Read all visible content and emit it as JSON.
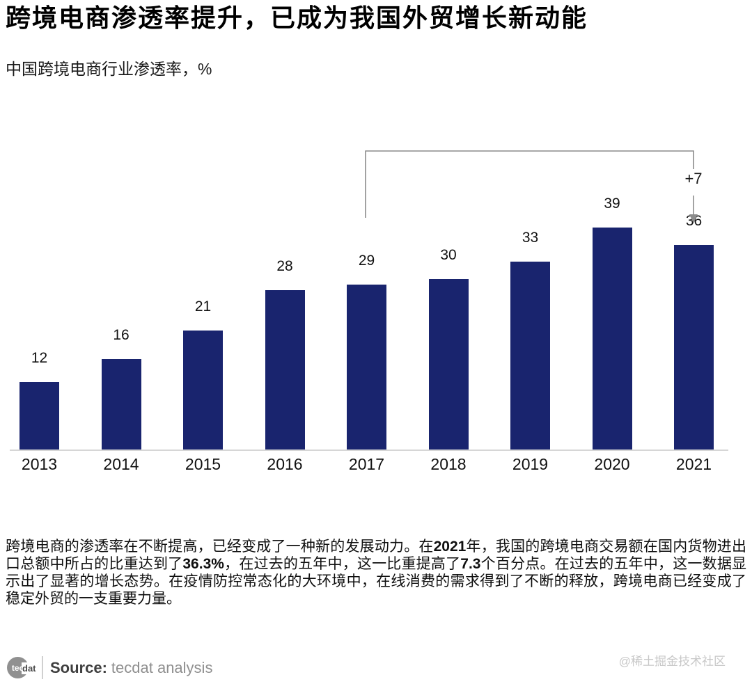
{
  "header": {
    "title": "跨境电商渗透率提升，已成为我国外贸增长新动能",
    "subtitle": "中国跨境电商行业渗透率，%"
  },
  "chart_data": {
    "type": "bar",
    "title": "中国跨境电商行业渗透率，%",
    "categories": [
      "2013",
      "2014",
      "2015",
      "2016",
      "2017",
      "2018",
      "2019",
      "2020",
      "2021"
    ],
    "values": [
      12,
      16,
      21,
      28,
      29,
      30,
      33,
      39,
      36
    ],
    "unit": "%",
    "xlabel": "",
    "ylabel": "",
    "ylim": [
      0,
      45
    ],
    "grid": false,
    "legend": false,
    "bar_color": "#19246e",
    "axis_line_color": "#d6d6d6",
    "annotation": {
      "label": "+7",
      "from_category": "2017",
      "to_category": "2021"
    }
  },
  "paragraph": {
    "segments": [
      {
        "text": "跨境电商的渗透率在不断提高，已经变成了一种新的发展动力。在",
        "bold": false
      },
      {
        "text": "2021",
        "bold": true
      },
      {
        "text": "年，我国的跨境电商交易额在国内货物进出口总额中所占的比重达到了",
        "bold": false
      },
      {
        "text": "36.3%",
        "bold": true
      },
      {
        "text": "，在过去的五年中，这一比重提高了",
        "bold": false
      },
      {
        "text": "7.3",
        "bold": true
      },
      {
        "text": "个百分点。在过去的五年中，这一数据显示出了显著的增长态势。在疫情防控常态化的大环境中，在线消费的需求得到了不断的释放，跨境电商已经变成了稳定外贸的一支重要力量。",
        "bold": false
      }
    ]
  },
  "footer": {
    "logo": {
      "circle_text": "tec",
      "suffix_text": "dat"
    },
    "source_label": "Source:",
    "source_value": "tecdat analysis",
    "watermark": "@稀土掘金技术社区"
  },
  "colors": {
    "bar": "#19246e",
    "axis_line": "#d6d6d6",
    "bracket": "#8c8c8c",
    "text": "#111111",
    "muted": "#8f8f8f",
    "watermark": "#c8c8c8"
  }
}
